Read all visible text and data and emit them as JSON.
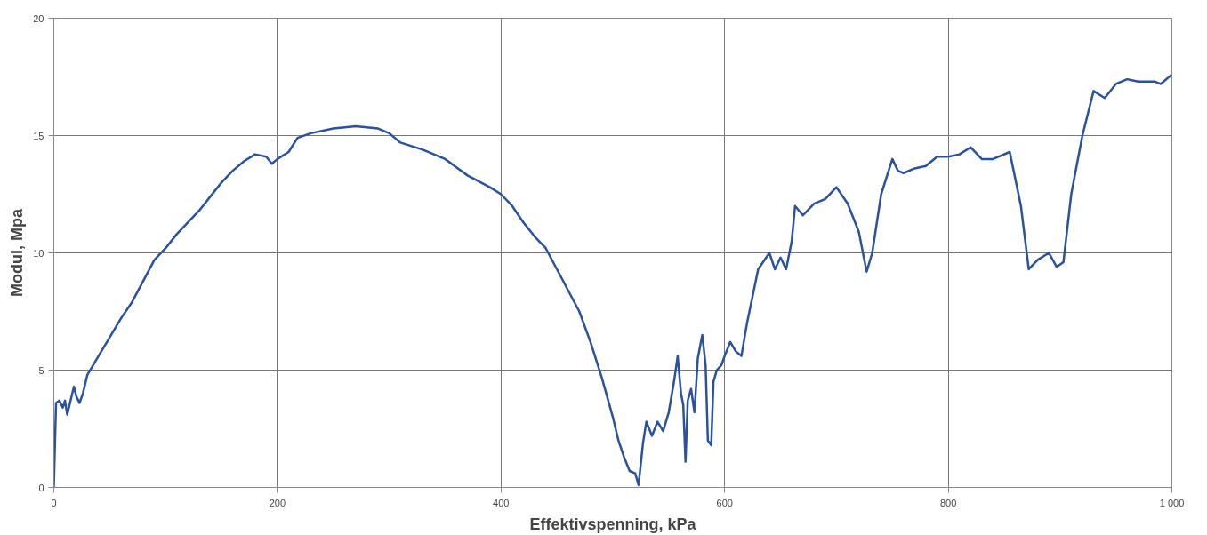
{
  "chart_data": {
    "type": "line",
    "xlabel": "Effektivspenning, kPa",
    "ylabel": "Modul, Mpa",
    "xlim": [
      0,
      1000
    ],
    "ylim": [
      0,
      20
    ],
    "xticks": [
      0,
      200,
      400,
      600,
      800,
      {
        "value": 1000,
        "label": "1 000"
      }
    ],
    "yticks": [
      0,
      5,
      10,
      15,
      20
    ],
    "grid": true,
    "marker": "none",
    "line_style": "solid",
    "series": [
      {
        "color": "#2a52a0",
        "x": [
          0,
          2,
          5,
          8,
          10,
          12,
          15,
          18,
          20,
          23,
          26,
          30,
          40,
          50,
          60,
          70,
          80,
          90,
          100,
          110,
          120,
          130,
          140,
          150,
          160,
          170,
          180,
          190,
          195,
          200,
          210,
          218,
          230,
          250,
          270,
          290,
          300,
          310,
          330,
          350,
          370,
          390,
          400,
          410,
          420,
          430,
          440,
          450,
          460,
          470,
          480,
          490,
          500,
          505,
          510,
          515,
          520,
          523,
          527,
          530,
          535,
          540,
          545,
          550,
          555,
          558,
          561,
          563,
          565,
          567,
          570,
          573,
          576,
          580,
          583,
          585,
          588,
          590,
          593,
          597,
          600,
          605,
          610,
          615,
          620,
          630,
          640,
          645,
          650,
          655,
          660,
          663,
          670,
          680,
          690,
          700,
          710,
          720,
          727,
          732,
          740,
          750,
          755,
          760,
          770,
          780,
          790,
          800,
          810,
          820,
          830,
          840,
          855,
          865,
          872,
          880,
          890,
          897,
          903,
          910,
          920,
          930,
          940,
          950,
          960,
          970,
          985,
          990,
          1000
        ],
        "values": [
          0,
          3.6,
          3.7,
          3.4,
          3.7,
          3.1,
          3.7,
          4.3,
          3.9,
          3.6,
          4.0,
          4.8,
          5.6,
          6.4,
          7.2,
          7.9,
          8.8,
          9.7,
          10.2,
          10.8,
          11.3,
          11.8,
          12.4,
          13.0,
          13.5,
          13.9,
          14.2,
          14.1,
          13.8,
          14.0,
          14.3,
          14.9,
          15.1,
          15.3,
          15.4,
          15.3,
          15.1,
          14.7,
          14.4,
          14.0,
          13.3,
          12.8,
          12.5,
          12.0,
          11.3,
          10.7,
          10.2,
          9.3,
          8.4,
          7.5,
          6.2,
          4.7,
          3.0,
          2.0,
          1.3,
          0.7,
          0.6,
          0.1,
          1.9,
          2.8,
          2.2,
          2.8,
          2.4,
          3.2,
          4.6,
          5.6,
          4.0,
          3.5,
          1.1,
          3.7,
          4.2,
          3.2,
          5.5,
          6.5,
          5.2,
          2.0,
          1.8,
          4.5,
          5.0,
          5.2,
          5.6,
          6.2,
          5.8,
          5.6,
          7.0,
          9.3,
          10.0,
          9.3,
          9.8,
          9.3,
          10.5,
          12.0,
          11.6,
          12.1,
          12.3,
          12.8,
          12.1,
          10.9,
          9.2,
          10.0,
          12.5,
          14.0,
          13.5,
          13.4,
          13.6,
          13.7,
          14.1,
          14.1,
          14.2,
          14.5,
          14.0,
          14.0,
          14.3,
          12.0,
          9.3,
          9.7,
          10.0,
          9.4,
          9.6,
          12.5,
          15.0,
          16.9,
          16.6,
          17.2,
          17.4,
          17.3,
          17.3,
          17.2,
          17.6
        ]
      }
    ]
  }
}
